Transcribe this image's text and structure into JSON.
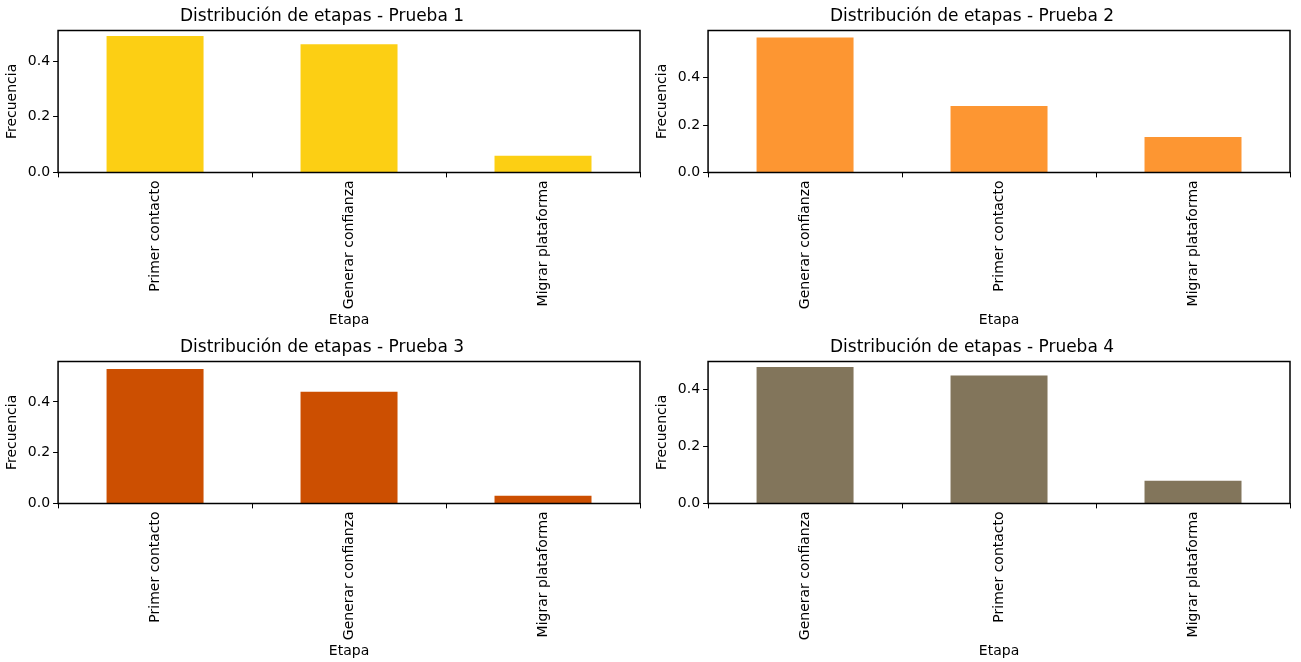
{
  "chart_data": [
    {
      "type": "bar",
      "title": "Distribución de etapas - Prueba 1",
      "xlabel": "Etapa",
      "ylabel": "Frecuencia",
      "categories": [
        "Primer contacto",
        "Generar confianza",
        "Migrar plataforma"
      ],
      "values": [
        0.49,
        0.46,
        0.06
      ],
      "color": "#fccf14",
      "ylim": [
        0,
        0.51
      ],
      "yticks": [
        {
          "value": 0,
          "label": "0.0"
        },
        {
          "value": 0.2,
          "label": "0.2"
        },
        {
          "value": 0.4,
          "label": "0.4"
        }
      ],
      "grid": false,
      "legend": false
    },
    {
      "type": "bar",
      "title": "Distribución de etapas - Prueba 2",
      "xlabel": "Etapa",
      "ylabel": "Frecuencia",
      "categories": [
        "Generar confianza",
        "Primer contacto",
        "Migrar plataforma"
      ],
      "values": [
        0.57,
        0.28,
        0.15
      ],
      "color": "#fd9632",
      "ylim": [
        0,
        0.6
      ],
      "yticks": [
        {
          "value": 0,
          "label": "0.0"
        },
        {
          "value": 0.2,
          "label": "0.2"
        },
        {
          "value": 0.4,
          "label": "0.4"
        }
      ],
      "grid": false,
      "legend": false
    },
    {
      "type": "bar",
      "title": "Distribución de etapas - Prueba 3",
      "xlabel": "Etapa",
      "ylabel": "Frecuencia",
      "categories": [
        "Primer contacto",
        "Generar confianza",
        "Migrar plataforma"
      ],
      "values": [
        0.53,
        0.44,
        0.03
      ],
      "color": "#cc4f01",
      "ylim": [
        0,
        0.56
      ],
      "yticks": [
        {
          "value": 0,
          "label": "0.0"
        },
        {
          "value": 0.2,
          "label": "0.2"
        },
        {
          "value": 0.4,
          "label": "0.4"
        }
      ],
      "grid": false,
      "legend": false
    },
    {
      "type": "bar",
      "title": "Distribución de etapas - Prueba 4",
      "xlabel": "Etapa",
      "ylabel": "Frecuencia",
      "categories": [
        "Generar confianza",
        "Primer contacto",
        "Migrar plataforma"
      ],
      "values": [
        0.48,
        0.45,
        0.08
      ],
      "color": "#82755b",
      "ylim": [
        0,
        0.5
      ],
      "yticks": [
        {
          "value": 0,
          "label": "0.0"
        },
        {
          "value": 0.2,
          "label": "0.2"
        },
        {
          "value": 0.4,
          "label": "0.4"
        }
      ],
      "grid": false,
      "legend": false
    }
  ]
}
